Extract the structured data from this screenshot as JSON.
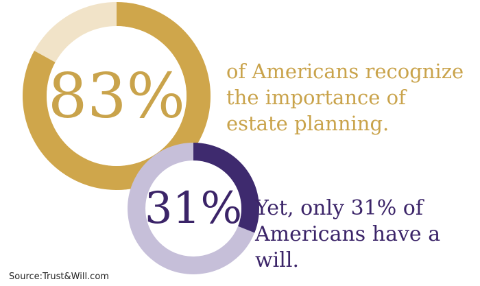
{
  "chart_data": [
    {
      "type": "pie",
      "variant": "donut",
      "value": 83,
      "label": "83%",
      "text": "of Americans recognize the importance of estate planning.",
      "text_lines": [
        "of Americans recognize",
        "the importance of",
        "estate planning."
      ],
      "colors": {
        "filled": "#cfa64b",
        "remainder": "#f1e3c8",
        "label": "#c9a34b"
      }
    },
    {
      "type": "pie",
      "variant": "donut",
      "value": 31,
      "label": "31%",
      "text": "Yet, only 31% of Americans have a will.",
      "text_lines": [
        "Yet, only 31% of",
        "Americans have a will."
      ],
      "colors": {
        "filled": "#3e2a6e",
        "remainder": "#c6bfd9",
        "label": "#3b2468"
      }
    }
  ],
  "source": "Source:Trust&Will.com"
}
